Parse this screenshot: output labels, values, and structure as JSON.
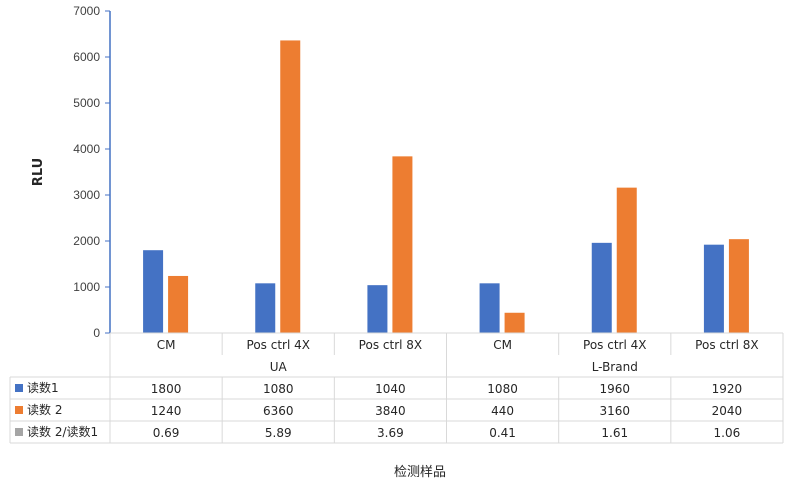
{
  "chart_data": {
    "type": "bar",
    "ylabel": "RLU",
    "xlabel": "检测样品",
    "ylim": [
      0,
      7000
    ],
    "yticks": [
      0,
      1000,
      2000,
      3000,
      4000,
      5000,
      6000,
      7000
    ],
    "grid": false,
    "legend": "data-table",
    "groups": [
      {
        "name": "UA",
        "categories": [
          "CM",
          "Pos ctrl 4X",
          "Pos ctrl 8X"
        ]
      },
      {
        "name": "L-Brand",
        "categories": [
          "CM",
          "Pos ctrl 4X",
          "Pos ctrl 8X"
        ]
      }
    ],
    "categories": [
      "CM",
      "Pos ctrl 4X",
      "Pos ctrl 8X",
      "CM",
      "Pos ctrl 4X",
      "Pos ctrl 8X"
    ],
    "series": [
      {
        "name": "读数1",
        "color": "#4472C4",
        "values": [
          1800,
          1080,
          1040,
          1080,
          1960,
          1920
        ]
      },
      {
        "name": "读数 2",
        "color": "#ED7D31",
        "values": [
          1240,
          6360,
          3840,
          440,
          3160,
          2040
        ]
      }
    ],
    "table_rows": [
      {
        "name": "读数1",
        "color": "#4472C4",
        "values": [
          "1800",
          "1080",
          "1040",
          "1080",
          "1960",
          "1920"
        ]
      },
      {
        "name": "读数 2",
        "color": "#ED7D31",
        "values": [
          "1240",
          "6360",
          "3840",
          "440",
          "3160",
          "2040"
        ]
      },
      {
        "name": "读数 2/读数1",
        "color": "#A5A5A5",
        "values": [
          "0.69",
          "5.89",
          "3.69",
          "0.41",
          "1.61",
          "1.06"
        ]
      }
    ]
  }
}
